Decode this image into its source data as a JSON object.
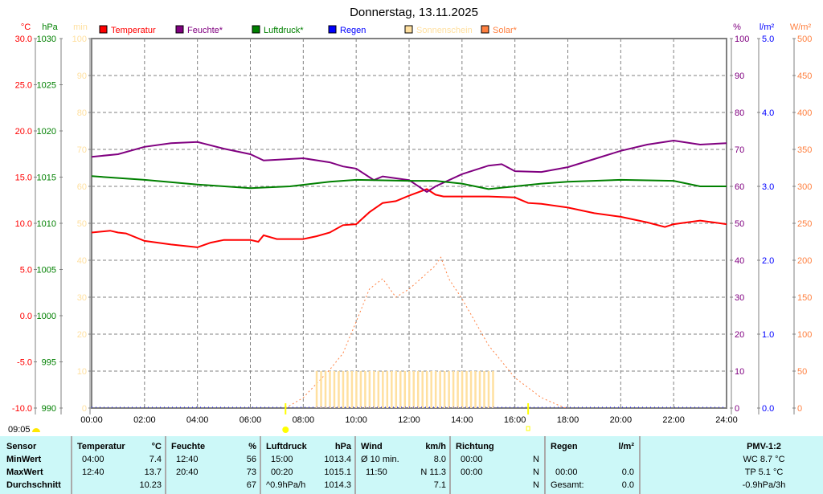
{
  "title": "Donnerstag, 13.11.2025",
  "current_time": "09:05",
  "chart_data": {
    "type": "line",
    "title": "Donnerstag, 13.11.2025",
    "xlabel": "",
    "xlim": [
      0,
      24
    ],
    "x_ticks": [
      "00:00",
      "02:00",
      "04:00",
      "06:00",
      "08:00",
      "10:00",
      "12:00",
      "14:00",
      "16:00",
      "18:00",
      "20:00",
      "22:00",
      "24:00"
    ],
    "axes": [
      {
        "unit": "°C",
        "range": [
          -10,
          30
        ],
        "ticks": [
          "30.0",
          "25.0",
          "20.0",
          "15.0",
          "10.0",
          "5.0",
          "0.0",
          "-5.0",
          "-10.0"
        ],
        "color": "#ff0000"
      },
      {
        "unit": "hPa",
        "range": [
          990,
          1030
        ],
        "ticks": [
          "1030",
          "1025",
          "1020",
          "1015",
          "1010",
          "1005",
          "1000",
          "995",
          "990"
        ],
        "color": "#008000"
      },
      {
        "unit": "min",
        "range": [
          0,
          100
        ],
        "ticks": [
          "100",
          "90",
          "80",
          "70",
          "60",
          "50",
          "40",
          "30",
          "20",
          "10",
          "0"
        ],
        "color": "#ffe0a0"
      },
      {
        "unit": "%",
        "range": [
          0,
          100
        ],
        "ticks": [
          "100",
          "90",
          "80",
          "70",
          "60",
          "50",
          "40",
          "30",
          "20",
          "10",
          "0"
        ],
        "color": "#800080"
      },
      {
        "unit": "l/m²",
        "range": [
          0,
          5
        ],
        "ticks": [
          "5.0",
          "4.0",
          "3.0",
          "2.0",
          "1.0",
          "0.0"
        ],
        "color": "#0000ff"
      },
      {
        "unit": "W/m²",
        "range": [
          0,
          500
        ],
        "ticks": [
          "500",
          "450",
          "400",
          "350",
          "300",
          "250",
          "200",
          "150",
          "100",
          "50",
          "0"
        ],
        "color": "#ff8040"
      }
    ],
    "legend": [
      {
        "label": "Temperatur",
        "color": "#ff0000"
      },
      {
        "label": "Feuchte*",
        "color": "#800080"
      },
      {
        "label": "Luftdruck*",
        "color": "#008000"
      },
      {
        "label": "Regen",
        "color": "#0000ff"
      },
      {
        "label": "Sonnenschein",
        "color": "#ffe0a0"
      },
      {
        "label": "Solar*",
        "color": "#ff8040"
      }
    ],
    "series": [
      {
        "name": "Temperatur",
        "axis": 0,
        "color": "#ff0000",
        "x": [
          0,
          0.7,
          1,
          1.3,
          2,
          3,
          4,
          4.5,
          5,
          6,
          6.3,
          6.5,
          7,
          8,
          8.5,
          9,
          9.5,
          10,
          10.5,
          11,
          11.5,
          12,
          12.67,
          13,
          13.3,
          14,
          15,
          16,
          16.5,
          17,
          18,
          19,
          20,
          20.5,
          21,
          21.67,
          22,
          23,
          24
        ],
        "y": [
          9.0,
          9.2,
          9.0,
          8.9,
          8.1,
          7.7,
          7.4,
          7.9,
          8.2,
          8.2,
          8.0,
          8.7,
          8.3,
          8.3,
          8.6,
          9.0,
          9.8,
          9.9,
          11.2,
          12.2,
          12.4,
          13.0,
          13.7,
          13.1,
          12.9,
          12.9,
          12.9,
          12.8,
          12.2,
          12.1,
          11.7,
          11.1,
          10.7,
          10.4,
          10.1,
          9.6,
          9.9,
          10.3,
          9.9
        ]
      },
      {
        "name": "Feuchte*",
        "axis": 3,
        "color": "#800080",
        "x": [
          0,
          1,
          2,
          3,
          4,
          5,
          6,
          6.5,
          7,
          8,
          9,
          9.5,
          10,
          10.67,
          11,
          12,
          12.67,
          13,
          14,
          15,
          15.5,
          16,
          17,
          18,
          19,
          20,
          21,
          22,
          23,
          24
        ],
        "y": [
          68,
          68.7,
          70.7,
          71.7,
          72,
          70.2,
          68.7,
          67,
          67.2,
          67.6,
          66.5,
          65.4,
          64.8,
          61.7,
          62.7,
          61.7,
          58.5,
          60,
          63.3,
          65.6,
          66,
          64.1,
          63.9,
          65.2,
          67.4,
          69.6,
          71.3,
          72.4,
          71.3,
          71.7
        ]
      },
      {
        "name": "Luftdruck*",
        "axis": 1,
        "color": "#008000",
        "x": [
          0,
          2,
          4,
          6,
          7.5,
          9,
          10,
          12,
          13,
          14,
          15,
          16,
          17,
          18,
          20,
          22,
          23,
          24
        ],
        "y": [
          1015.1,
          1014.7,
          1014.2,
          1013.8,
          1014.0,
          1014.5,
          1014.7,
          1014.6,
          1014.6,
          1014.3,
          1013.7,
          1014.0,
          1014.3,
          1014.5,
          1014.7,
          1014.6,
          1014.0,
          1014.0
        ]
      },
      {
        "name": "Solar*",
        "axis": 5,
        "color": "#ff8040",
        "dashed": true,
        "x": [
          7.33,
          8,
          9,
          9.5,
          10,
          10.5,
          11,
          11.5,
          12,
          12.5,
          13,
          13.2,
          13.5,
          14,
          15,
          16,
          17,
          17.83,
          18
        ],
        "y": [
          0,
          14,
          52,
          74,
          117,
          161,
          175,
          150,
          161,
          177,
          193,
          204,
          175,
          148,
          85,
          41,
          14,
          1,
          0
        ]
      },
      {
        "name": "Sonnenschein",
        "axis": 2,
        "color": "#ffe0a0",
        "type": "bar",
        "from": 8.5,
        "to": 15.33,
        "step_min": 10,
        "value": 10
      },
      {
        "name": "Regen",
        "axis": 4,
        "color": "#0000ff",
        "value": 0
      }
    ],
    "markers": {
      "sunrise": 7.33,
      "sunset": 16.5
    }
  },
  "table": {
    "sensor": {
      "h": "Sensor",
      "min": "MinWert",
      "max": "MaxWert",
      "avg": "Durchschnitt"
    },
    "temp": {
      "h": "Temperatur",
      "u": "°C",
      "min_t": "04:00",
      "min": "7.4",
      "max_t": "12:40",
      "max": "13.7",
      "avg": "10.23"
    },
    "hum": {
      "h": "Feuchte",
      "u": "%",
      "min_t": "12:40",
      "min": "56",
      "max_t": "20:40",
      "max": "73",
      "avg": "67"
    },
    "press": {
      "h": "Luftdruck",
      "u": "hPa",
      "min_t": "15:00",
      "min": "1013.4",
      "max_t": "00:20",
      "max": "1015.1",
      "trend": "^0.9hPa/h",
      "avg": "1014.3"
    },
    "wind": {
      "h": "Wind",
      "u": "km/h",
      "r1": "Ø 10 min.",
      "v1": "8.0",
      "r2": "11:50",
      "v2": "N 11.3",
      "v3": "7.1"
    },
    "dir": {
      "h": "Richtung",
      "t1": "00:00",
      "d1": "N",
      "t2": "00:00",
      "d2": "N",
      "d3": "N"
    },
    "rain": {
      "h": "Regen",
      "u": "l/m²",
      "t2": "00:00",
      "v2": "0.0",
      "l3": "Gesamt:",
      "v3": "0.0"
    },
    "pmv": {
      "h": "PMV-1:2",
      "l1": "WC 8.7 °C",
      "l2": "TP 5.1 °C",
      "l3": "-0.9hPa/3h"
    }
  }
}
